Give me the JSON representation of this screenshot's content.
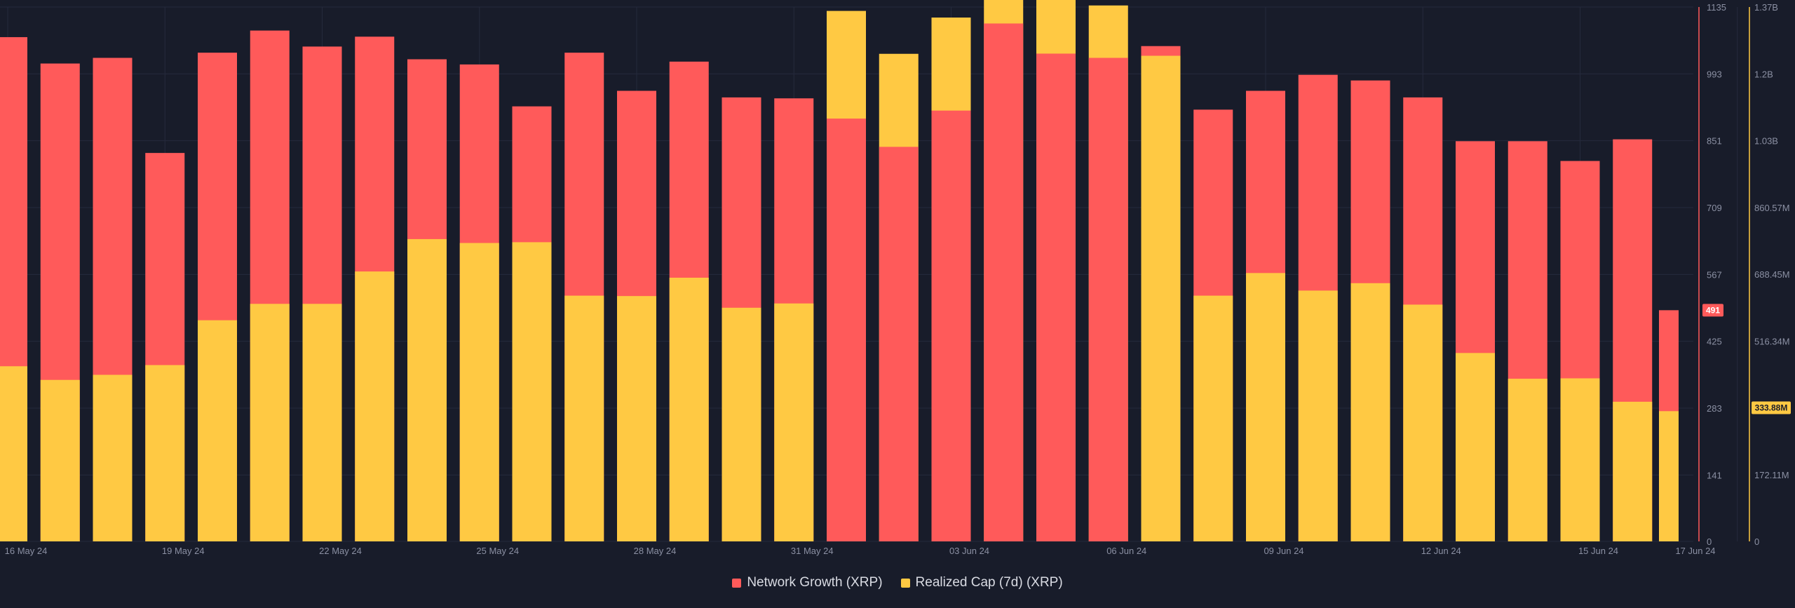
{
  "chart_data": {
    "type": "bar",
    "stacked": true,
    "title": "",
    "x_tick_labels": [
      "16 May 24",
      "19 May 24",
      "22 May 24",
      "25 May 24",
      "28 May 24",
      "31 May 24",
      "03 Jun 24",
      "06 Jun 24",
      "09 Jun 24",
      "12 Jun 24",
      "15 Jun 24",
      "17 Jun 24"
    ],
    "series": [
      {
        "name": "Network Growth (XRP)",
        "color": "#ff5a5a",
        "axis": "left",
        "values": [
          1071,
          1015,
          1027,
          825,
          1038,
          1085,
          1051,
          1072,
          1024,
          1013,
          924,
          1038,
          957,
          1019,
          943,
          941,
          898,
          838,
          915,
          1100,
          1036,
          1027,
          1052,
          917,
          957,
          991,
          979,
          943,
          850,
          850,
          808,
          854,
          491
        ]
      },
      {
        "name": "Realized Cap (7d) (XRP)",
        "color": "#ffc943",
        "axis": "right",
        "values": [
          449.0,
          414.0,
          427.0,
          452.0,
          567.0,
          609.0,
          609.0,
          692.0,
          775.0,
          765.0,
          767.0,
          630.0,
          629.0,
          676.0,
          599.0,
          610.0,
          1360.0,
          1250.0,
          1343.0,
          1405.0,
          1412.0,
          1374.0,
          1245.0,
          630.0,
          688.0,
          643.0,
          662.0,
          607.0,
          483.0,
          417.0,
          418.0,
          358.0,
          333.88
        ]
      }
    ],
    "left_axis": {
      "min": 0,
      "max": 1135,
      "ticks": [
        "0",
        "141",
        "283",
        "425",
        "567",
        "709",
        "851",
        "993",
        "1135"
      ]
    },
    "right_axis": {
      "min": 0,
      "max": 1370,
      "unit": "M",
      "ticks": [
        "0",
        "172.11M",
        "333.88M",
        "516.34M",
        "688.45M",
        "860.57M",
        "1.03B",
        "1.2B",
        "1.37B"
      ]
    },
    "last_values": {
      "left": "491",
      "right": "333.88M"
    },
    "legend_position": "bottom-center"
  },
  "legend": {
    "network_growth": "Network Growth (XRP)",
    "realized_cap": "Realized Cap (7d) (XRP)"
  }
}
